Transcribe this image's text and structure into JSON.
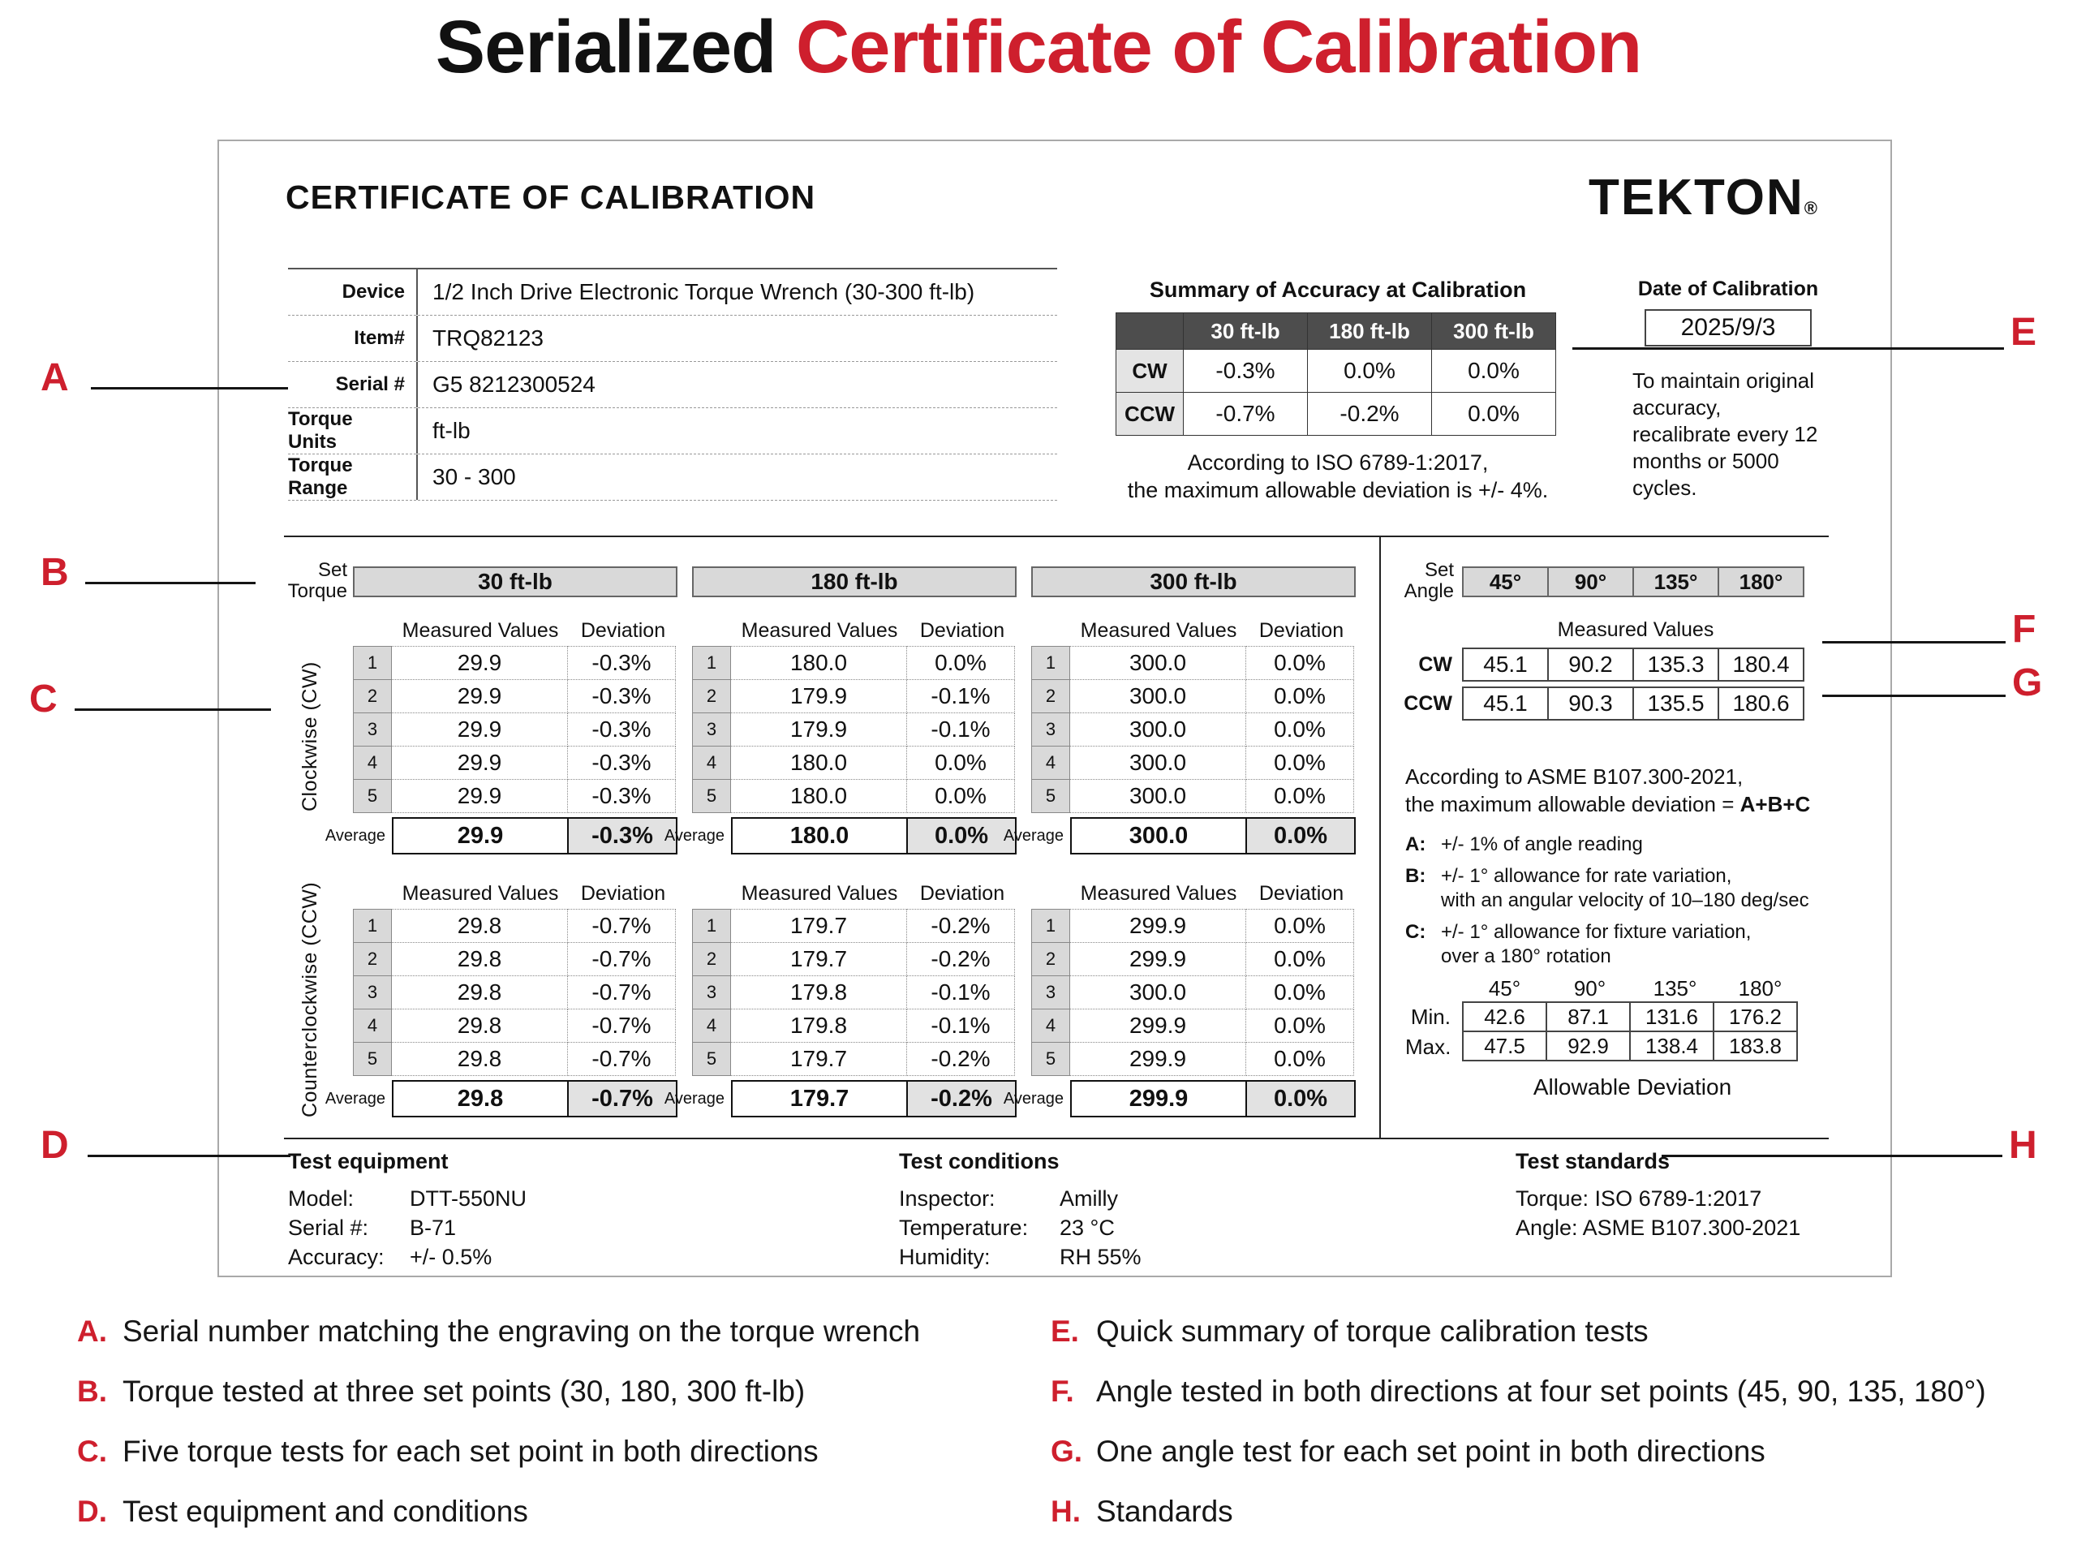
{
  "accent_red": "#ce1f2d",
  "title": {
    "black": "Serialized",
    "red": "Certificate of Calibration"
  },
  "callouts": [
    "A",
    "B",
    "C",
    "D",
    "E",
    "F",
    "G",
    "H"
  ],
  "certificate": {
    "heading": "CERTIFICATE OF CALIBRATION",
    "brand": "TEKTON",
    "brand_mark": "®",
    "device_info": [
      {
        "label": "Device",
        "value": "1/2 Inch Drive Electronic Torque Wrench (30-300 ft-lb)"
      },
      {
        "label": "Item#",
        "value": "TRQ82123"
      },
      {
        "label": "Serial #",
        "value": "G5 8212300524"
      },
      {
        "label": "Torque Units",
        "value": "ft-lb"
      },
      {
        "label": "Torque Range",
        "value": "30 - 300"
      }
    ],
    "summary": {
      "title": "Summary of Accuracy at Calibration",
      "columns": [
        "30 ft-lb",
        "180 ft-lb",
        "300 ft-lb"
      ],
      "rows": [
        {
          "label": "CW",
          "values": [
            "-0.3%",
            "0.0%",
            "0.0%"
          ]
        },
        {
          "label": "CCW",
          "values": [
            "-0.7%",
            "-0.2%",
            "0.0%"
          ]
        }
      ],
      "note_line1": "According to  ISO 6789-1:2017,",
      "note_line2": "the maximum allowable deviation is +/- 4%."
    },
    "calibration_date": {
      "label": "Date of Calibration",
      "value": "2025/9/3",
      "note": "To maintain original accuracy, recalibrate every 12 months or 5000 cycles."
    },
    "torque": {
      "set_label_1": "Set",
      "set_label_2": "Torque",
      "measured_header": "Measured Values",
      "deviation_header": "Deviation",
      "average_label": "Average",
      "cw_label": "Clockwise (CW)",
      "ccw_label": "Counterclockwise (CCW)",
      "set_points": [
        "30 ft-lb",
        "180 ft-lb",
        "300 ft-lb"
      ],
      "cw": [
        {
          "measured": [
            "29.9",
            "29.9",
            "29.9",
            "29.9",
            "29.9"
          ],
          "deviation": [
            "-0.3%",
            "-0.3%",
            "-0.3%",
            "-0.3%",
            "-0.3%"
          ],
          "avg_measured": "29.9",
          "avg_deviation": "-0.3%"
        },
        {
          "measured": [
            "180.0",
            "179.9",
            "179.9",
            "180.0",
            "180.0"
          ],
          "deviation": [
            "0.0%",
            "-0.1%",
            "-0.1%",
            "0.0%",
            "0.0%"
          ],
          "avg_measured": "180.0",
          "avg_deviation": "0.0%"
        },
        {
          "measured": [
            "300.0",
            "300.0",
            "300.0",
            "300.0",
            "300.0"
          ],
          "deviation": [
            "0.0%",
            "0.0%",
            "0.0%",
            "0.0%",
            "0.0%"
          ],
          "avg_measured": "300.0",
          "avg_deviation": "0.0%"
        }
      ],
      "ccw": [
        {
          "measured": [
            "29.8",
            "29.8",
            "29.8",
            "29.8",
            "29.8"
          ],
          "deviation": [
            "-0.7%",
            "-0.7%",
            "-0.7%",
            "-0.7%",
            "-0.7%"
          ],
          "avg_measured": "29.8",
          "avg_deviation": "-0.7%"
        },
        {
          "measured": [
            "179.7",
            "179.7",
            "179.8",
            "179.8",
            "179.7"
          ],
          "deviation": [
            "-0.2%",
            "-0.2%",
            "-0.1%",
            "-0.1%",
            "-0.2%"
          ],
          "avg_measured": "179.7",
          "avg_deviation": "-0.2%"
        },
        {
          "measured": [
            "299.9",
            "299.9",
            "300.0",
            "299.9",
            "299.9"
          ],
          "deviation": [
            "0.0%",
            "0.0%",
            "0.0%",
            "0.0%",
            "0.0%"
          ],
          "avg_measured": "299.9",
          "avg_deviation": "0.0%"
        }
      ]
    },
    "angle": {
      "set_label_1": "Set",
      "set_label_2": "Angle",
      "set_points": [
        "45°",
        "90°",
        "135°",
        "180°"
      ],
      "measured_header": "Measured Values",
      "cw_label": "CW",
      "ccw_label": "CCW",
      "cw_values": [
        "45.1",
        "90.2",
        "135.3",
        "180.4"
      ],
      "ccw_values": [
        "45.1",
        "90.3",
        "135.5",
        "180.6"
      ],
      "note_line1": "According to ASME B107.300-2021,",
      "note_line2_prefix": "the maximum allowable deviation = ",
      "note_line2_bold": "A+B+C",
      "allowances": [
        {
          "key": "A:",
          "lines": [
            "+/- 1% of angle reading"
          ]
        },
        {
          "key": "B:",
          "lines": [
            "+/- 1° allowance for rate variation,",
            "with an angular velocity of 10–180 deg/sec"
          ]
        },
        {
          "key": "C:",
          "lines": [
            "+/- 1° allowance for fixture variation,",
            "over a 180° rotation"
          ]
        }
      ],
      "deviation_table": {
        "columns": [
          "45°",
          "90°",
          "135°",
          "180°"
        ],
        "min_label": "Min.",
        "max_label": "Max.",
        "min_values": [
          "42.6",
          "87.1",
          "131.6",
          "176.2"
        ],
        "max_values": [
          "47.5",
          "92.9",
          "138.4",
          "183.8"
        ],
        "caption": "Allowable Deviation"
      }
    },
    "footer": {
      "equipment": {
        "title": "Test equipment",
        "rows": [
          {
            "label": "Model:",
            "value": "DTT-550NU"
          },
          {
            "label": "Serial #:",
            "value": "B-71"
          },
          {
            "label": "Accuracy:",
            "value": "+/- 0.5%"
          }
        ]
      },
      "conditions": {
        "title": "Test conditions",
        "rows": [
          {
            "label": "Inspector:",
            "value": "Amilly"
          },
          {
            "label": "Temperature:",
            "value": "23 °C"
          },
          {
            "label": "Humidity:",
            "value": "RH 55%"
          }
        ]
      },
      "standards": {
        "title": "Test standards",
        "lines": [
          "Torque: ISO 6789-1:2017",
          "Angle: ASME B107.300-2021"
        ]
      }
    }
  },
  "legend": {
    "left": [
      {
        "letter": "A.",
        "text": "Serial number matching the engraving on the torque wrench"
      },
      {
        "letter": "B.",
        "text": "Torque tested at three set points (30, 180, 300 ft-lb)"
      },
      {
        "letter": "C.",
        "text": "Five torque tests for each set point in both directions"
      },
      {
        "letter": "D.",
        "text": "Test equipment and conditions"
      }
    ],
    "right": [
      {
        "letter": "E.",
        "text": "Quick summary of torque calibration tests"
      },
      {
        "letter": "F.",
        "text": "Angle tested in both directions at four set points (45, 90, 135, 180°)"
      },
      {
        "letter": "G.",
        "text": "One angle test for each set point in both directions"
      },
      {
        "letter": "H.",
        "text": "Standards"
      }
    ]
  }
}
